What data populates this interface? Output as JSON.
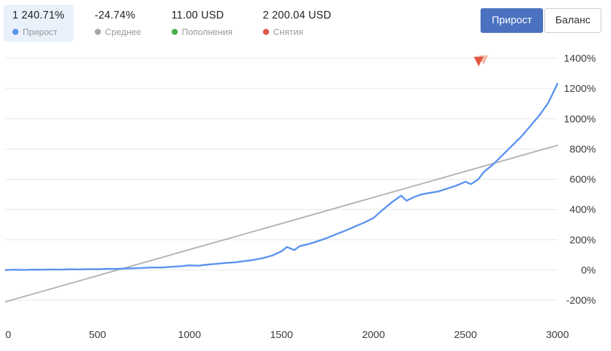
{
  "header": {
    "stats": [
      {
        "value": "1 240.71%",
        "label": "Прирост",
        "dot_color": "#5b93ef",
        "highlight": true
      },
      {
        "value": "-24.74%",
        "label": "Среднее",
        "dot_color": "#a8a8a8",
        "highlight": false
      },
      {
        "value": "11.00 USD",
        "label": "Пополнения",
        "dot_color": "#4caf50",
        "highlight": false
      },
      {
        "value": "2 200.04 USD",
        "label": "Снятия",
        "dot_color": "#e0594a",
        "highlight": false
      }
    ],
    "toggle": {
      "buttons": [
        {
          "label": "Прирост",
          "active": true
        },
        {
          "label": "Баланс",
          "active": false
        }
      ]
    }
  },
  "colors": {
    "accent_button": "#4a72c0",
    "highlight_bg": "#e9f1fb",
    "growth_line": "#5b93ef",
    "average_line": "#b3b3b3",
    "grid_line": "#e6e6e6",
    "deposit_green": "#4caf50",
    "withdrawal_red": "#e0594a"
  },
  "chart_data": {
    "type": "line",
    "title": "",
    "xlabel": "",
    "ylabel": "",
    "xlim": [
      0,
      3000
    ],
    "ylim": [
      -200,
      1400
    ],
    "x_ticks": [
      0,
      500,
      1000,
      1500,
      2000,
      2500,
      3000
    ],
    "y_ticks": [
      1400,
      1200,
      1000,
      800,
      600,
      400,
      200,
      0,
      -200
    ],
    "y_tick_suffix": "%",
    "grid": "horizontal",
    "legend_position": "top",
    "series": [
      {
        "name": "Среднее",
        "color": "#b3b3b3",
        "width": 2,
        "points": [
          [
            0,
            -210
          ],
          [
            3000,
            825
          ]
        ]
      },
      {
        "name": "Прирост",
        "color": "#5b93ef",
        "width": 2.5,
        "points": [
          [
            0,
            0
          ],
          [
            50,
            2
          ],
          [
            100,
            1
          ],
          [
            150,
            3
          ],
          [
            200,
            2
          ],
          [
            250,
            4
          ],
          [
            300,
            3
          ],
          [
            350,
            5
          ],
          [
            400,
            4
          ],
          [
            450,
            6
          ],
          [
            500,
            5
          ],
          [
            550,
            8
          ],
          [
            600,
            7
          ],
          [
            650,
            10
          ],
          [
            700,
            12
          ],
          [
            750,
            14
          ],
          [
            800,
            17
          ],
          [
            850,
            16
          ],
          [
            900,
            21
          ],
          [
            950,
            25
          ],
          [
            1000,
            31
          ],
          [
            1050,
            29
          ],
          [
            1100,
            36
          ],
          [
            1150,
            41
          ],
          [
            1200,
            47
          ],
          [
            1250,
            51
          ],
          [
            1300,
            59
          ],
          [
            1350,
            67
          ],
          [
            1400,
            79
          ],
          [
            1450,
            96
          ],
          [
            1500,
            124
          ],
          [
            1530,
            152
          ],
          [
            1570,
            132
          ],
          [
            1600,
            158
          ],
          [
            1650,
            172
          ],
          [
            1700,
            192
          ],
          [
            1750,
            213
          ],
          [
            1800,
            238
          ],
          [
            1850,
            262
          ],
          [
            1900,
            288
          ],
          [
            1950,
            314
          ],
          [
            2000,
            344
          ],
          [
            2050,
            398
          ],
          [
            2100,
            448
          ],
          [
            2150,
            492
          ],
          [
            2180,
            458
          ],
          [
            2220,
            482
          ],
          [
            2260,
            500
          ],
          [
            2300,
            509
          ],
          [
            2350,
            519
          ],
          [
            2400,
            538
          ],
          [
            2450,
            558
          ],
          [
            2500,
            584
          ],
          [
            2530,
            568
          ],
          [
            2570,
            601
          ],
          [
            2600,
            648
          ],
          [
            2650,
            698
          ],
          [
            2700,
            758
          ],
          [
            2750,
            818
          ],
          [
            2800,
            878
          ],
          [
            2850,
            948
          ],
          [
            2900,
            1020
          ],
          [
            2950,
            1105
          ],
          [
            3000,
            1232
          ]
        ]
      }
    ],
    "markers": [
      {
        "name": "withdrawal-marker",
        "x": 2583,
        "y": 1383,
        "colors": [
          "#f5bdaa",
          "#e2553f"
        ]
      }
    ]
  }
}
